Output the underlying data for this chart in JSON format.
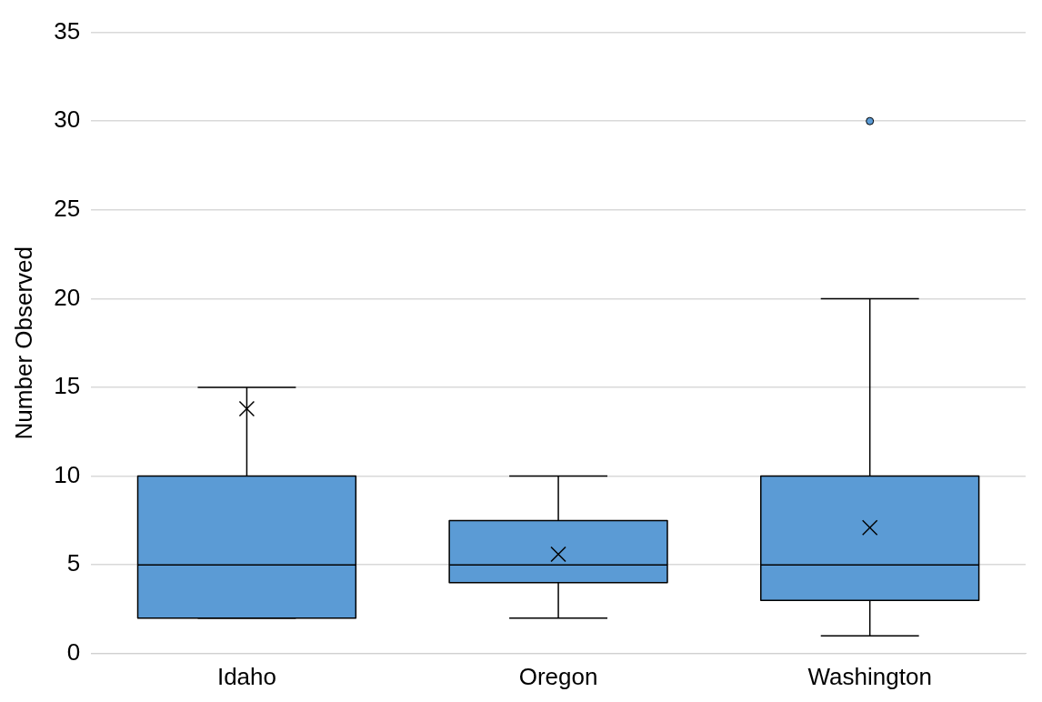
{
  "chart_data": {
    "type": "box",
    "ylabel": "Number Observed",
    "categories": [
      "Idaho",
      "Oregon",
      "Washington"
    ],
    "color": "#5b9bd5",
    "boxes": [
      {
        "low": 2,
        "q1": 2,
        "median": 5,
        "q3": 10,
        "high": 15,
        "mean": 13.8
      },
      {
        "low": 2,
        "q1": 4,
        "median": 5,
        "q3": 7.5,
        "high": 10,
        "mean": 5.6
      },
      {
        "low": 1,
        "q1": 3,
        "median": 5,
        "q3": 10,
        "high": 20,
        "mean": 7.1,
        "outliers": [
          30
        ]
      }
    ],
    "ylim": [
      0,
      35
    ],
    "yticks": [
      0,
      5,
      10,
      15,
      20,
      25,
      30,
      35
    ],
    "grid": "y",
    "legend": false
  }
}
